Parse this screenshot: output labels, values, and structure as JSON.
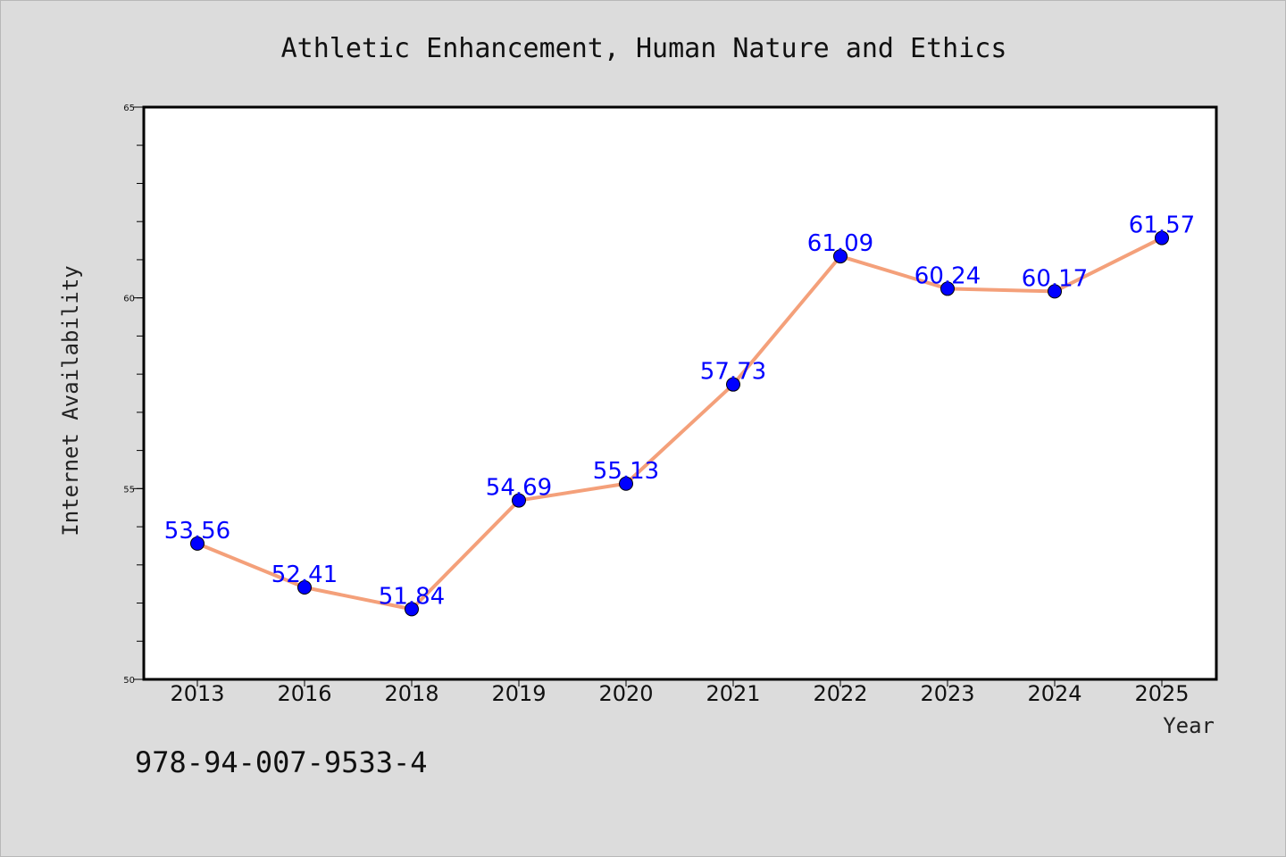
{
  "chart_data": {
    "type": "line",
    "title": "Athletic Enhancement, Human Nature and Ethics",
    "xlabel": "Year",
    "ylabel": "Internet Availability",
    "categories": [
      "2013",
      "2016",
      "2018",
      "2019",
      "2020",
      "2021",
      "2022",
      "2023",
      "2024",
      "2025"
    ],
    "series": [
      {
        "values": [
          53.56,
          52.41,
          51.84,
          54.69,
          55.13,
          57.73,
          61.09,
          60.24,
          60.17,
          61.57
        ],
        "data_labels": [
          "53.56",
          "52.41",
          "51.84",
          "54.69",
          "55.13",
          "57.73",
          "61.09",
          "60.24",
          "60.17",
          "61.57"
        ]
      }
    ],
    "ylim": [
      50,
      65
    ],
    "yticks": [
      "50",
      "55",
      "60",
      "65"
    ],
    "grid": false,
    "legend": "none",
    "colors": {
      "line": "#f4a07a",
      "marker": "#0000ff",
      "data_label": "#0000ff",
      "background": "#dcdcdc",
      "plot_background": "#ffffff"
    }
  },
  "footer": {
    "isbn": "978-94-007-9533-4"
  }
}
